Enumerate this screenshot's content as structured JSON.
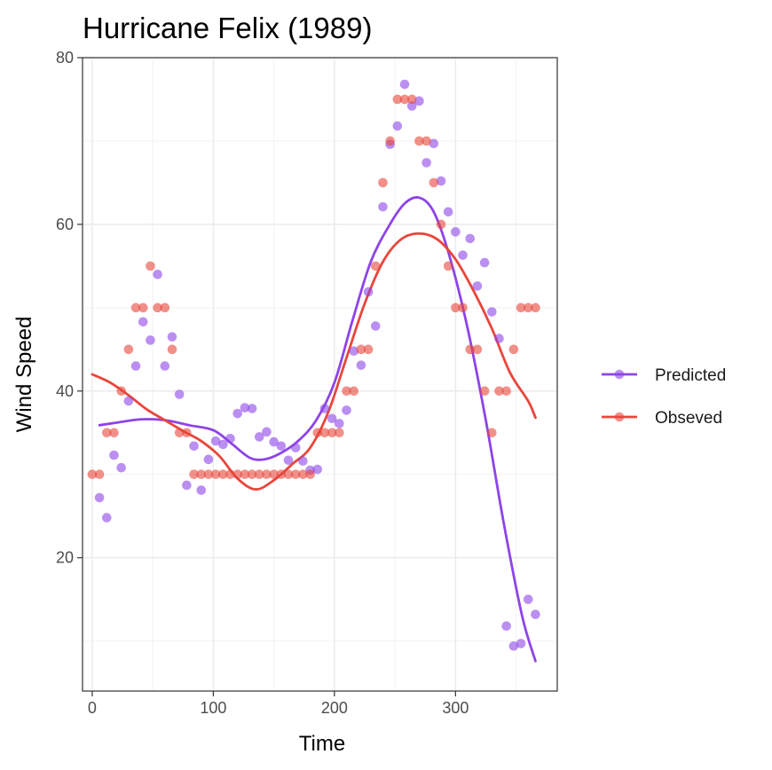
{
  "chart_data": {
    "type": "scatter",
    "title": "Hurricane Felix (1989)",
    "xlabel": "Time",
    "ylabel": "Wind Speed",
    "xlim": [
      -8,
      384
    ],
    "ylim": [
      4,
      80
    ],
    "xticks": [
      0,
      100,
      200,
      300
    ],
    "yticks": [
      20,
      40,
      60,
      80
    ],
    "grid": true,
    "legend_position": "right",
    "series": [
      {
        "name": "Predicted",
        "color": "#8e44e8",
        "points": [
          [
            6,
            27.2
          ],
          [
            12,
            24.8
          ],
          [
            18,
            32.3
          ],
          [
            24,
            30.8
          ],
          [
            30,
            38.8
          ],
          [
            36,
            43
          ],
          [
            42,
            48.3
          ],
          [
            48,
            46.1
          ],
          [
            54,
            54
          ],
          [
            60,
            43
          ],
          [
            66,
            46.5
          ],
          [
            72,
            39.6
          ],
          [
            78,
            28.7
          ],
          [
            84,
            33.4
          ],
          [
            90,
            28.1
          ],
          [
            96,
            31.8
          ],
          [
            102,
            34
          ],
          [
            108,
            33.6
          ],
          [
            114,
            34.3
          ],
          [
            120,
            37.3
          ],
          [
            126,
            38
          ],
          [
            132,
            37.9
          ],
          [
            138,
            34.5
          ],
          [
            144,
            35.1
          ],
          [
            150,
            33.9
          ],
          [
            156,
            33.4
          ],
          [
            162,
            31.7
          ],
          [
            168,
            33.2
          ],
          [
            174,
            31.6
          ],
          [
            180,
            30.5
          ],
          [
            186,
            30.6
          ],
          [
            192,
            37.9
          ],
          [
            198,
            36.7
          ],
          [
            204,
            36.1
          ],
          [
            210,
            37.7
          ],
          [
            216,
            44.8
          ],
          [
            222,
            43.1
          ],
          [
            228,
            51.9
          ],
          [
            234,
            47.8
          ],
          [
            240,
            62.1
          ],
          [
            246,
            69.6
          ],
          [
            252,
            71.8
          ],
          [
            258,
            76.8
          ],
          [
            264,
            74.2
          ],
          [
            270,
            74.8
          ],
          [
            276,
            67.4
          ],
          [
            282,
            69.7
          ],
          [
            288,
            65.2
          ],
          [
            294,
            61.5
          ],
          [
            300,
            59.1
          ],
          [
            306,
            56.3
          ],
          [
            312,
            58.3
          ],
          [
            318,
            52.6
          ],
          [
            324,
            55.4
          ],
          [
            330,
            49.5
          ],
          [
            336,
            46.3
          ],
          [
            342,
            11.8
          ],
          [
            348,
            9.4
          ],
          [
            354,
            9.7
          ],
          [
            360,
            15
          ],
          [
            366,
            13.2
          ]
        ],
        "trend": [
          [
            6,
            35.9
          ],
          [
            20,
            36.2
          ],
          [
            40,
            36.6
          ],
          [
            60,
            36.5
          ],
          [
            80,
            35.9
          ],
          [
            100,
            35.3
          ],
          [
            115,
            33.7
          ],
          [
            130,
            32
          ],
          [
            142,
            31.8
          ],
          [
            155,
            32.5
          ],
          [
            170,
            34
          ],
          [
            185,
            36.5
          ],
          [
            200,
            41
          ],
          [
            215,
            48.5
          ],
          [
            230,
            55.5
          ],
          [
            245,
            59.8
          ],
          [
            258,
            62.5
          ],
          [
            270,
            63.2
          ],
          [
            282,
            61.5
          ],
          [
            295,
            56.2
          ],
          [
            310,
            47.5
          ],
          [
            325,
            36.5
          ],
          [
            340,
            24
          ],
          [
            355,
            13
          ],
          [
            366,
            7.6
          ]
        ]
      },
      {
        "name": "Obseved",
        "color": "#e8463b",
        "points": [
          [
            0,
            30
          ],
          [
            6,
            30
          ],
          [
            12,
            35
          ],
          [
            18,
            35
          ],
          [
            24,
            40
          ],
          [
            30,
            45
          ],
          [
            36,
            50
          ],
          [
            42,
            50
          ],
          [
            48,
            55
          ],
          [
            54,
            50
          ],
          [
            60,
            50
          ],
          [
            66,
            45
          ],
          [
            72,
            35
          ],
          [
            78,
            35
          ],
          [
            84,
            30
          ],
          [
            90,
            30
          ],
          [
            96,
            30
          ],
          [
            102,
            30
          ],
          [
            108,
            30
          ],
          [
            114,
            30
          ],
          [
            120,
            30
          ],
          [
            126,
            30
          ],
          [
            132,
            30
          ],
          [
            138,
            30
          ],
          [
            144,
            30
          ],
          [
            150,
            30
          ],
          [
            156,
            30
          ],
          [
            162,
            30
          ],
          [
            168,
            30
          ],
          [
            174,
            30
          ],
          [
            180,
            30
          ],
          [
            186,
            35
          ],
          [
            192,
            35
          ],
          [
            198,
            35
          ],
          [
            204,
            35
          ],
          [
            210,
            40
          ],
          [
            216,
            40
          ],
          [
            222,
            45
          ],
          [
            228,
            45
          ],
          [
            234,
            55
          ],
          [
            240,
            65
          ],
          [
            246,
            70
          ],
          [
            252,
            75
          ],
          [
            258,
            75
          ],
          [
            264,
            75
          ],
          [
            270,
            70
          ],
          [
            276,
            70
          ],
          [
            282,
            65
          ],
          [
            288,
            60
          ],
          [
            294,
            55
          ],
          [
            300,
            50
          ],
          [
            306,
            50
          ],
          [
            312,
            45
          ],
          [
            318,
            45
          ],
          [
            324,
            40
          ],
          [
            330,
            35
          ],
          [
            336,
            40
          ],
          [
            342,
            40
          ],
          [
            348,
            45
          ],
          [
            354,
            50
          ],
          [
            360,
            50
          ],
          [
            366,
            50
          ]
        ],
        "trend": [
          [
            0,
            42
          ],
          [
            15,
            41
          ],
          [
            30,
            39.5
          ],
          [
            45,
            37.8
          ],
          [
            60,
            36.5
          ],
          [
            75,
            35.2
          ],
          [
            90,
            34
          ],
          [
            105,
            32.2
          ],
          [
            120,
            29.5
          ],
          [
            135,
            28.2
          ],
          [
            150,
            29.3
          ],
          [
            165,
            31.2
          ],
          [
            180,
            33.2
          ],
          [
            195,
            37.5
          ],
          [
            210,
            44
          ],
          [
            225,
            50.5
          ],
          [
            240,
            55.5
          ],
          [
            255,
            58.2
          ],
          [
            270,
            58.9
          ],
          [
            285,
            58.2
          ],
          [
            300,
            55.8
          ],
          [
            315,
            52
          ],
          [
            330,
            47.5
          ],
          [
            345,
            42.2
          ],
          [
            360,
            38.8
          ],
          [
            366,
            36.8
          ]
        ]
      }
    ]
  }
}
